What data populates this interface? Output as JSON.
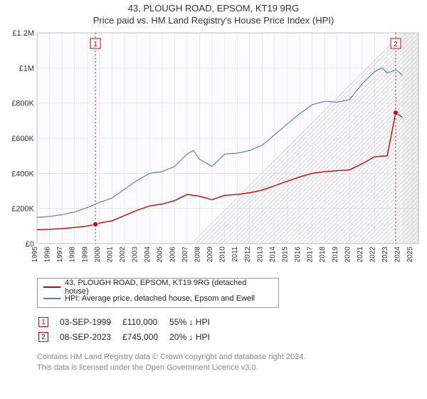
{
  "title": "43, PLOUGH ROAD, EPSOM, KT19 9RG",
  "subtitle": "Price paid vs. HM Land Registry's House Price Index (HPI)",
  "chart": {
    "type": "line",
    "background_color": "#ffffff",
    "plot_bg_color": "#fcfcfe",
    "grid_color": "#d8d8e0",
    "axis_color": "#888888",
    "x": {
      "min": 1995,
      "max": 2025.5,
      "ticks": [
        1995,
        1996,
        1997,
        1998,
        1999,
        2000,
        2001,
        2002,
        2003,
        2004,
        2005,
        2006,
        2007,
        2008,
        2009,
        2010,
        2011,
        2012,
        2013,
        2014,
        2015,
        2016,
        2017,
        2018,
        2019,
        2020,
        2021,
        2022,
        2023,
        2024,
        2025
      ],
      "tick_fontsize": 10
    },
    "y": {
      "min": 0,
      "max": 1200000,
      "ticks": [
        0,
        200000,
        400000,
        600000,
        800000,
        1000000,
        1200000
      ],
      "tick_labels": [
        "£0",
        "£200K",
        "£400K",
        "£600K",
        "£800K",
        "£1M",
        "£1.2M"
      ],
      "tick_fontsize": 11
    },
    "future_band": {
      "from": 2024.2,
      "to": 2025.5,
      "fill": "#eeeeee",
      "hatch": "#cccccc"
    },
    "series": [
      {
        "name": "43, PLOUGH ROAD, EPSOM, KT19 9RG (detached house)",
        "color": "#cc0000",
        "width": 1.4,
        "points": [
          [
            1995,
            80000
          ],
          [
            1996,
            82000
          ],
          [
            1997,
            86000
          ],
          [
            1998,
            92000
          ],
          [
            1999,
            100000
          ],
          [
            1999.67,
            110000
          ],
          [
            2000,
            118000
          ],
          [
            2001,
            130000
          ],
          [
            2002,
            160000
          ],
          [
            2003,
            190000
          ],
          [
            2004,
            215000
          ],
          [
            2005,
            225000
          ],
          [
            2006,
            245000
          ],
          [
            2007,
            280000
          ],
          [
            2008,
            270000
          ],
          [
            2009,
            250000
          ],
          [
            2010,
            275000
          ],
          [
            2011,
            280000
          ],
          [
            2012,
            290000
          ],
          [
            2013,
            305000
          ],
          [
            2014,
            330000
          ],
          [
            2015,
            355000
          ],
          [
            2016,
            380000
          ],
          [
            2017,
            400000
          ],
          [
            2018,
            410000
          ],
          [
            2019,
            415000
          ],
          [
            2020,
            420000
          ],
          [
            2021,
            455000
          ],
          [
            2022,
            495000
          ],
          [
            2023,
            500000
          ],
          [
            2023.68,
            745000
          ],
          [
            2024.2,
            720000
          ]
        ]
      },
      {
        "name": "HPI: Average price, detached house, Epsom and Ewell",
        "color": "#5b7fb5",
        "width": 1.2,
        "points": [
          [
            1995,
            150000
          ],
          [
            1996,
            155000
          ],
          [
            1997,
            165000
          ],
          [
            1998,
            180000
          ],
          [
            1999,
            205000
          ],
          [
            2000,
            235000
          ],
          [
            2001,
            260000
          ],
          [
            2002,
            310000
          ],
          [
            2003,
            360000
          ],
          [
            2004,
            400000
          ],
          [
            2005,
            410000
          ],
          [
            2006,
            440000
          ],
          [
            2007,
            510000
          ],
          [
            2007.5,
            530000
          ],
          [
            2008,
            480000
          ],
          [
            2009,
            440000
          ],
          [
            2010,
            510000
          ],
          [
            2011,
            515000
          ],
          [
            2012,
            530000
          ],
          [
            2013,
            560000
          ],
          [
            2014,
            620000
          ],
          [
            2015,
            680000
          ],
          [
            2016,
            740000
          ],
          [
            2017,
            790000
          ],
          [
            2018,
            810000
          ],
          [
            2019,
            805000
          ],
          [
            2020,
            820000
          ],
          [
            2021,
            910000
          ],
          [
            2022,
            980000
          ],
          [
            2022.6,
            1000000
          ],
          [
            2023,
            970000
          ],
          [
            2023.7,
            990000
          ],
          [
            2024.2,
            960000
          ]
        ]
      }
    ],
    "markers": [
      {
        "id": "1",
        "x": 1999.67,
        "y": 110000,
        "color": "#cc0000",
        "line": "dashed"
      },
      {
        "id": "2",
        "x": 2023.68,
        "y": 745000,
        "color": "#cc0000",
        "line": "dashed"
      }
    ]
  },
  "legend": {
    "items": [
      {
        "color": "#cc0000",
        "label": "43, PLOUGH ROAD, EPSOM, KT19 9RG (detached house)"
      },
      {
        "color": "#5b7fb5",
        "label": "HPI: Average price, detached house, Epsom and Ewell"
      }
    ]
  },
  "sales": [
    {
      "badge": "1",
      "date": "03-SEP-1999",
      "price": "£110,000",
      "delta": "55% ↓ HPI"
    },
    {
      "badge": "2",
      "date": "08-SEP-2023",
      "price": "£745,000",
      "delta": "20% ↓ HPI"
    }
  ],
  "footer": {
    "line1": "Contains HM Land Registry data © Crown copyright and database right 2024.",
    "line2": "This data is licensed under the Open Government Licence v3.0."
  }
}
